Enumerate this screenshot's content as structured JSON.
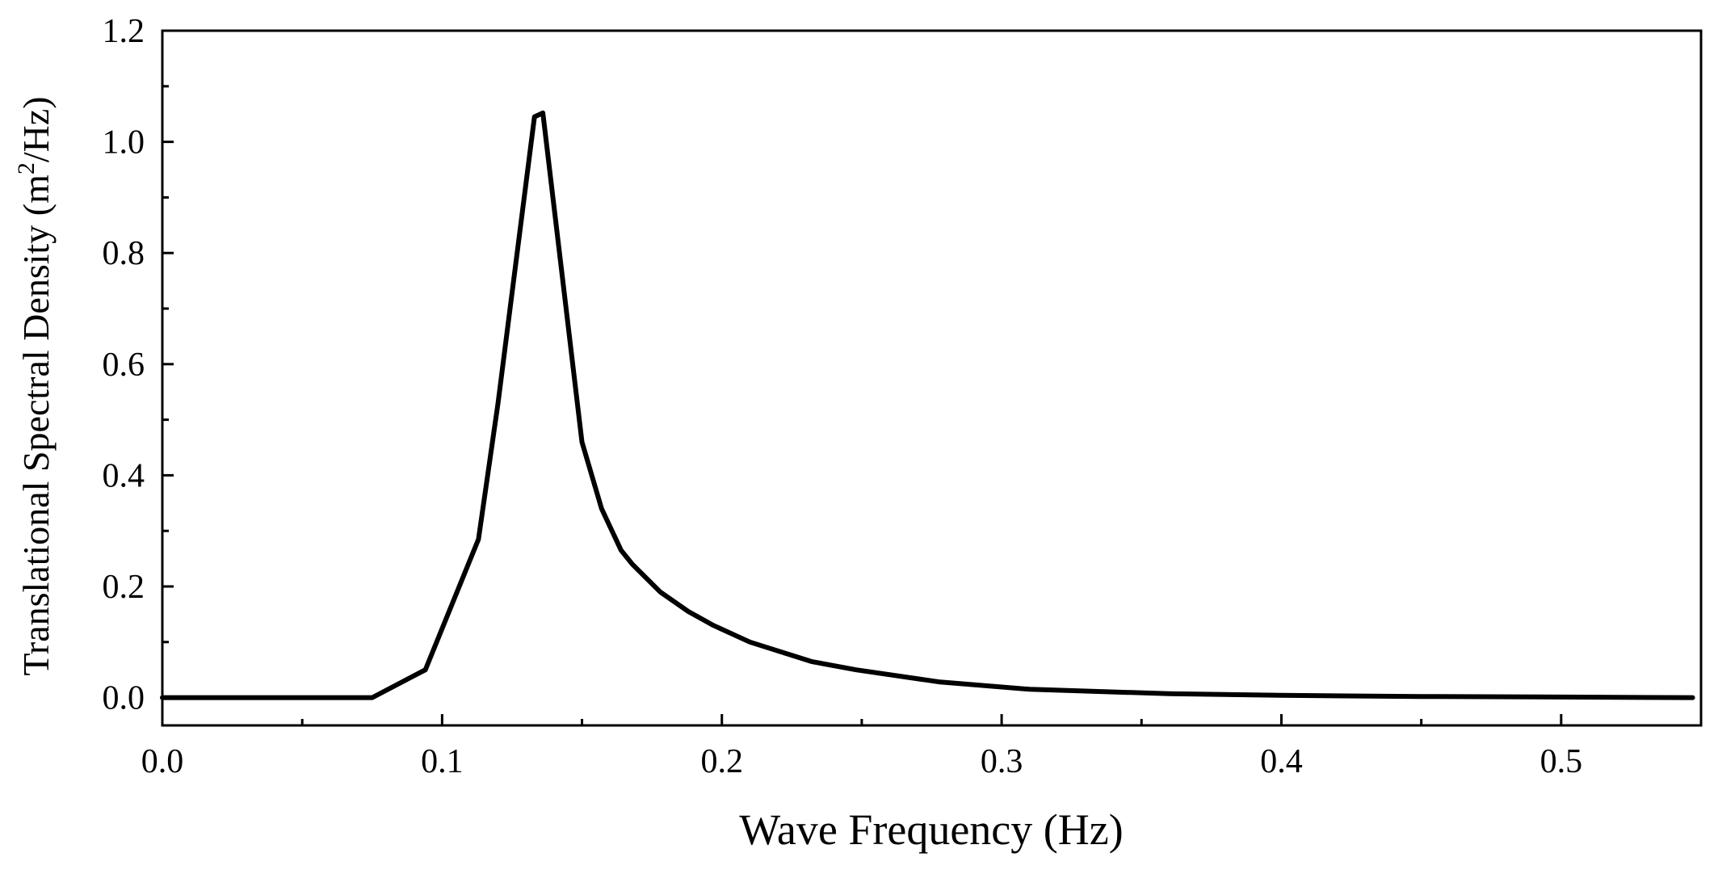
{
  "chart_data": {
    "type": "line",
    "title": "",
    "xlabel": "Wave Frequency (Hz)",
    "ylabel": {
      "prefix": "Translational Spectral Density (m",
      "superscript": "2",
      "suffix": "/Hz)"
    },
    "xlim": [
      0.0,
      0.55
    ],
    "ylim": [
      -0.05,
      1.2
    ],
    "xticks": [
      0.0,
      0.1,
      0.2,
      0.3,
      0.4,
      0.5
    ],
    "xtick_labels": [
      "0.0",
      "0.1",
      "0.2",
      "0.3",
      "0.4",
      "0.5"
    ],
    "yticks": [
      0.0,
      0.2,
      0.4,
      0.6,
      0.8,
      1.0,
      1.2
    ],
    "ytick_labels": [
      "0.0",
      "0.2",
      "0.4",
      "0.6",
      "0.8",
      "1.0",
      "1.2"
    ],
    "grid": false,
    "legend": "none",
    "series": [
      {
        "name": "Translational Spectral Density",
        "color": "#000000",
        "x": [
          0.0,
          0.075,
          0.094,
          0.113,
          0.12,
          0.133,
          0.136,
          0.15,
          0.157,
          0.164,
          0.168,
          0.178,
          0.188,
          0.197,
          0.21,
          0.232,
          0.248,
          0.278,
          0.31,
          0.36,
          0.4,
          0.45,
          0.5,
          0.547
        ],
        "values": [
          0.0,
          0.0,
          0.05,
          0.285,
          0.53,
          1.045,
          1.052,
          0.46,
          0.34,
          0.265,
          0.24,
          0.19,
          0.155,
          0.13,
          0.1,
          0.065,
          0.05,
          0.028,
          0.015,
          0.007,
          0.004,
          0.002,
          0.001,
          0.0
        ]
      }
    ]
  }
}
